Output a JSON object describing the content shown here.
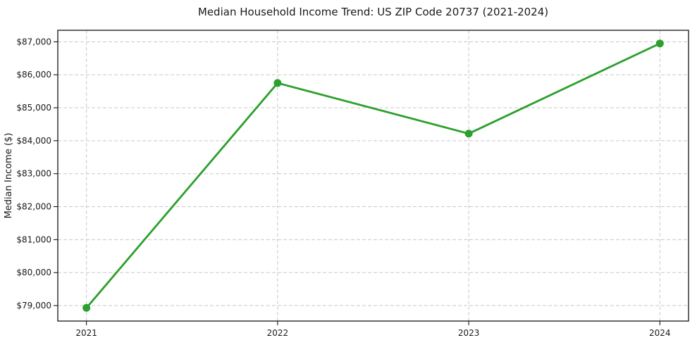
{
  "chart_data": {
    "type": "line",
    "title": "Median Household Income Trend: US ZIP Code 20737 (2021-2024)",
    "xlabel": "",
    "ylabel": "Median Income ($)",
    "x": [
      2021,
      2022,
      2023,
      2024
    ],
    "x_tick_labels": [
      "2021",
      "2022",
      "2023",
      "2024"
    ],
    "series": [
      {
        "values": [
          78930,
          85750,
          84215,
          86950
        ],
        "color": "#2ca02c",
        "marker": "circle"
      }
    ],
    "ylim": [
      78530,
      87350
    ],
    "y_ticks": [
      {
        "value": 79000,
        "label": "$79,000"
      },
      {
        "value": 80000,
        "label": "$80,000"
      },
      {
        "value": 81000,
        "label": "$81,000"
      },
      {
        "value": 82000,
        "label": "$82,000"
      },
      {
        "value": 83000,
        "label": "$83,000"
      },
      {
        "value": 84000,
        "label": "$84,000"
      },
      {
        "value": 85000,
        "label": "$85,000"
      },
      {
        "value": 86000,
        "label": "$86,000"
      },
      {
        "value": 87000,
        "label": "$87,000"
      }
    ],
    "grid": true,
    "grid_style": "dashed",
    "legend": "none"
  },
  "colors": {
    "line": "#2ca02c",
    "grid": "#c8c8c8",
    "spine": "#000000",
    "background": "#ffffff",
    "text": "#1a1a1a"
  }
}
